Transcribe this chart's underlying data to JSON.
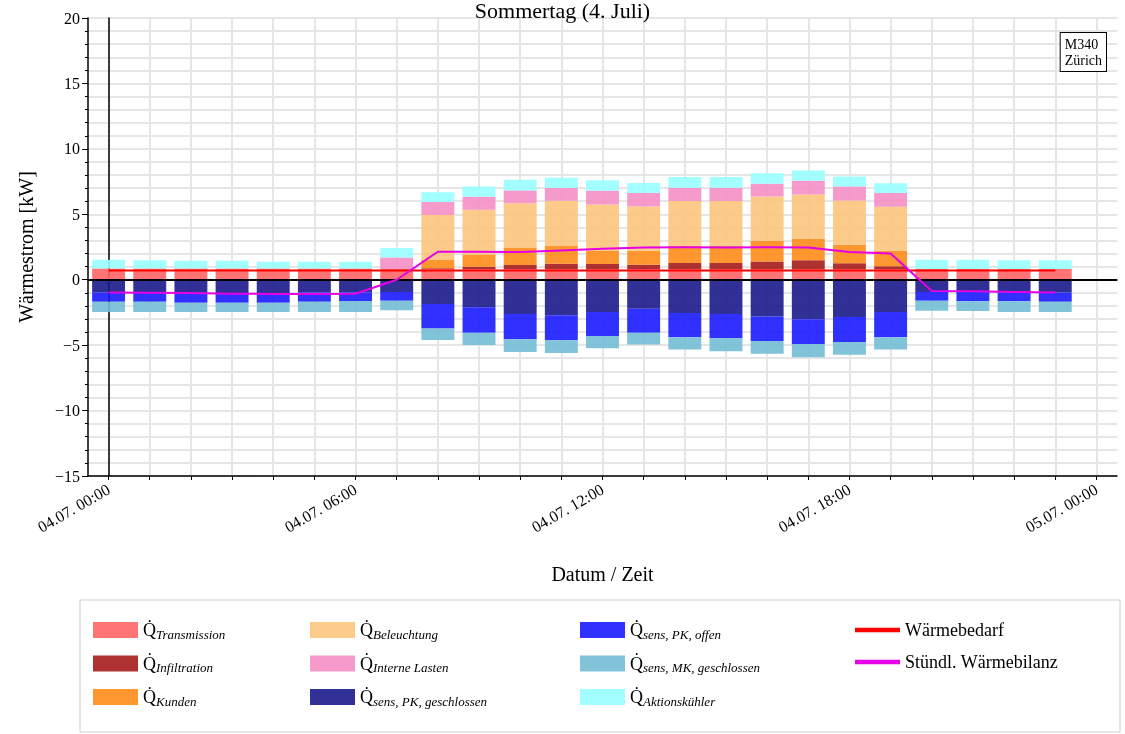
{
  "chart_data": {
    "type": "bar",
    "title": "Sommertag (4. Juli)",
    "xlabel": "Datum / Zeit",
    "ylabel": "Wärmestrom [kW]",
    "categories": [
      "04.07. 00:00",
      null,
      null,
      null,
      null,
      null,
      "04.07. 06:00",
      null,
      null,
      null,
      null,
      null,
      "04.07. 12:00",
      null,
      null,
      null,
      null,
      null,
      "04.07. 18:00",
      null,
      null,
      null,
      null,
      null,
      "05.07. 00:00"
    ],
    "ylim": [
      -15,
      20
    ],
    "yticks": [
      -15,
      -10,
      -5,
      0,
      5,
      10,
      15,
      20
    ],
    "stacked": true,
    "grid": true,
    "legend": "bottom",
    "annotations": [
      "M340\nZürich"
    ],
    "ref_lines": [
      {
        "axis": "y",
        "value": 0,
        "color": "#000000"
      }
    ],
    "series": [
      {
        "name": "Q̇$_{Transmission}$",
        "color": "#ff6666",
        "values": [
          0.85,
          0.85,
          0.85,
          0.85,
          0.85,
          0.85,
          0.85,
          0.81,
          0.81,
          0.81,
          0.81,
          0.81,
          0.81,
          0.81,
          0.81,
          0.81,
          0.81,
          0.81,
          0.81,
          0.81,
          0.81,
          0.81,
          0.81,
          0.81,
          null
        ]
      },
      {
        "name": "Q̇$_{Infiltration}$",
        "color": "#a51c1c",
        "values": [
          0,
          0,
          0,
          0,
          0,
          0,
          0,
          0,
          0.06,
          0.18,
          0.31,
          0.41,
          0.39,
          0.34,
          0.46,
          0.46,
          0.59,
          0.67,
          0.44,
          0.21,
          0,
          0,
          0,
          0,
          null
        ]
      },
      {
        "name": "Q̇$_{Kunden}$",
        "color": "#ff8c1a",
        "values": [
          0,
          0,
          0,
          0,
          0,
          0,
          0,
          0,
          0.68,
          0.94,
          1.35,
          1.4,
          1.04,
          1.06,
          1.33,
          1.33,
          1.58,
          1.65,
          1.42,
          1.19,
          0,
          0,
          0,
          0,
          null
        ]
      },
      {
        "name": "Q̇$_{Beleuchtung}$",
        "color": "#fcc47c",
        "values": [
          0,
          0,
          0,
          0,
          0,
          0,
          0,
          0,
          3.39,
          3.41,
          3.38,
          3.41,
          3.51,
          3.39,
          3.41,
          3.41,
          3.38,
          3.38,
          3.39,
          3.36,
          0,
          0,
          0,
          0,
          null
        ]
      },
      {
        "name": "Q̇$_{Interne Lasten}$",
        "color": "#f48fc4",
        "values": [
          0,
          0,
          0,
          0,
          0,
          0,
          0,
          0.89,
          0.99,
          1.0,
          0.97,
          0.97,
          1.04,
          1.02,
          1.01,
          1.01,
          0.97,
          1.05,
          1.06,
          1.05,
          0,
          0,
          0,
          0,
          null
        ]
      },
      {
        "name": "Q̇$_{sens, PK, geschlossen}$",
        "color": "#1a1a8c",
        "values": [
          -0.97,
          -0.97,
          -1.02,
          -1.02,
          -1.02,
          -0.97,
          -0.97,
          -0.94,
          -1.86,
          -2.11,
          -2.62,
          -2.72,
          -2.47,
          -2.21,
          -2.54,
          -2.62,
          -2.82,
          -3.03,
          -2.85,
          -2.47,
          -0.94,
          -0.94,
          -0.97,
          -0.97,
          null
        ]
      },
      {
        "name": "Q̇$_{sens, PK, offen}$",
        "color": "#1a1aff",
        "values": [
          -0.71,
          -0.71,
          -0.74,
          -0.74,
          -0.74,
          -0.71,
          -0.66,
          -0.66,
          -1.86,
          -1.94,
          -1.93,
          -1.91,
          -1.83,
          -1.84,
          -1.86,
          -1.86,
          -1.86,
          -1.88,
          -1.91,
          -1.93,
          -0.66,
          -0.71,
          -0.68,
          -0.71,
          null
        ]
      },
      {
        "name": "Q̇$_{sens, MK, geschlossen}$",
        "color": "#73bcd4",
        "values": [
          -0.79,
          -0.79,
          -0.71,
          -0.71,
          -0.71,
          -0.79,
          -0.84,
          -0.74,
          -0.89,
          -0.94,
          -0.97,
          -0.97,
          -0.94,
          -0.91,
          -0.94,
          -0.99,
          -0.97,
          -1.02,
          -0.97,
          -0.94,
          -0.77,
          -0.74,
          -0.82,
          -0.79,
          null
        ]
      },
      {
        "name": "Q̇$_{Aktionskühler}$",
        "color": "#99ffff",
        "values": [
          0.68,
          0.63,
          0.6,
          0.6,
          0.52,
          0.52,
          0.52,
          0.72,
          0.76,
          0.78,
          0.81,
          0.79,
          0.82,
          0.78,
          0.82,
          0.82,
          0.81,
          0.79,
          0.77,
          0.76,
          0.72,
          0.72,
          0.68,
          0.68,
          null
        ]
      },
      {
        "name": "Wärmebedarf",
        "type": "line",
        "color": "#ff0000",
        "values": [
          0.7,
          0.7,
          0.7,
          0.7,
          0.7,
          0.7,
          0.7,
          0.7,
          0.7,
          0.7,
          0.7,
          0.7,
          0.7,
          0.7,
          0.7,
          0.7,
          0.7,
          0.7,
          0.7,
          0.7,
          0.7,
          0.7,
          0.7,
          0.7,
          null
        ]
      },
      {
        "name": "Stündl. Wärmebilanz",
        "type": "line",
        "color": "#e600e6",
        "values": [
          -0.97,
          -1.0,
          -1.02,
          -1.07,
          -1.09,
          -1.09,
          -1.07,
          0.0,
          2.14,
          2.14,
          2.11,
          2.24,
          2.37,
          2.47,
          2.49,
          2.47,
          2.49,
          2.47,
          2.11,
          2.01,
          -0.87,
          -0.89,
          -0.94,
          -0.97,
          null
        ]
      }
    ]
  }
}
